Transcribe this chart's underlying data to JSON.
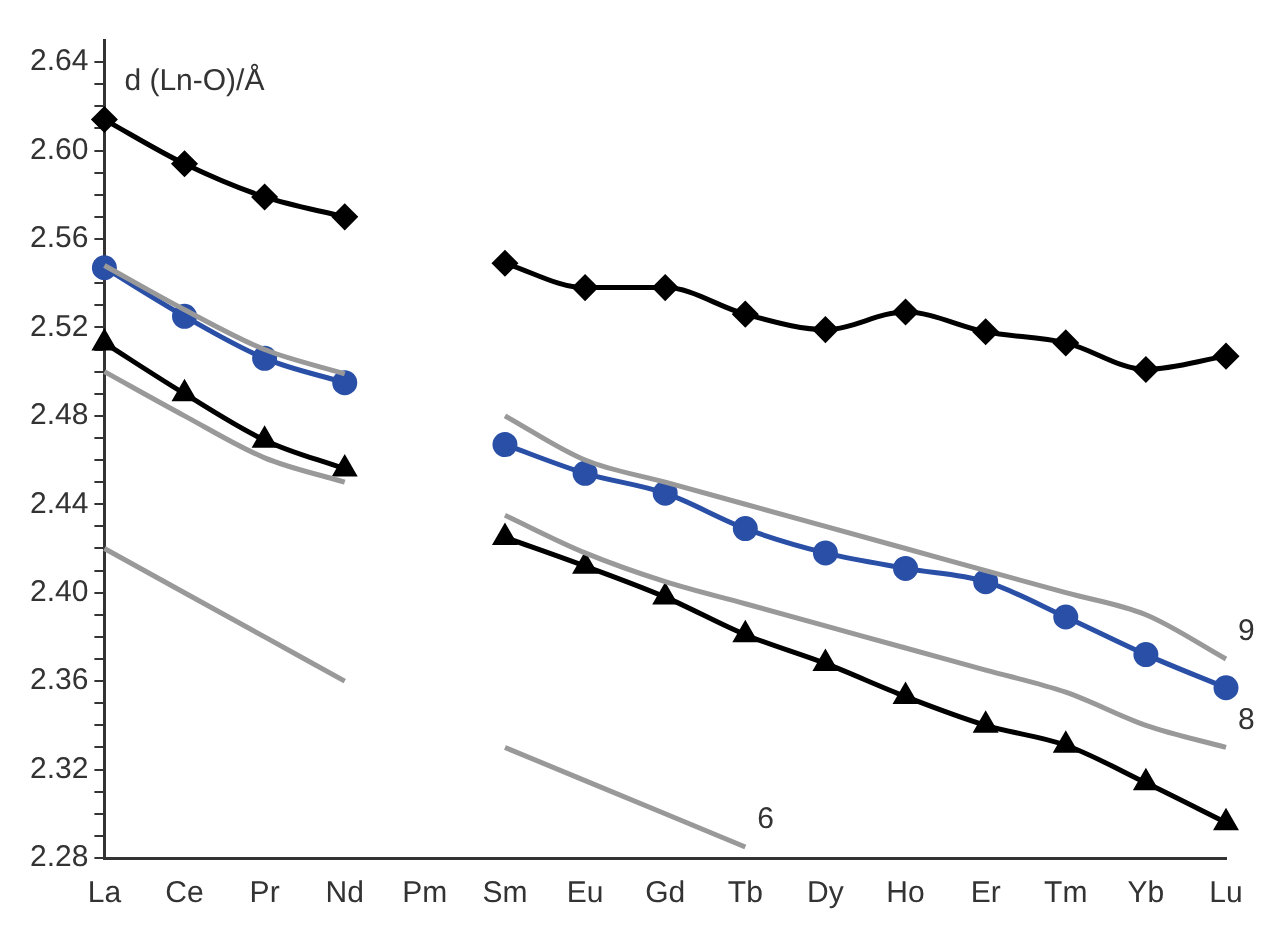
{
  "chart_data": {
    "type": "line",
    "ylabel": "d (Ln-O)/Å",
    "categories": [
      "La",
      "Ce",
      "Pr",
      "Nd",
      "Pm",
      "Sm",
      "Eu",
      "Gd",
      "Tb",
      "Dy",
      "Ho",
      "Er",
      "Tm",
      "Yb",
      "Lu"
    ],
    "series": [
      {
        "color": "#999999",
        "marker": "none",
        "values": [
          2.548,
          2.528,
          2.51,
          2.499,
          null,
          2.48,
          2.46,
          2.45,
          2.44,
          2.43,
          2.42,
          2.41,
          2.4,
          2.39,
          2.37
        ]
      },
      {
        "color": "#999999",
        "marker": "none",
        "values": [
          2.5,
          2.48,
          2.461,
          2.45,
          null,
          2.435,
          2.418,
          2.405,
          2.395,
          2.385,
          2.375,
          2.365,
          2.355,
          2.34,
          2.33
        ]
      },
      {
        "color": "#999999",
        "marker": "none",
        "values": [
          2.42,
          2.4,
          2.38,
          2.36,
          null,
          2.33,
          2.315,
          2.3,
          2.285,
          null,
          null,
          null,
          null,
          null,
          null
        ]
      },
      {
        "color": "#000000",
        "marker": "diamond",
        "values": [
          2.614,
          2.594,
          2.579,
          2.57,
          null,
          2.549,
          2.538,
          2.538,
          2.526,
          2.519,
          2.527,
          2.518,
          2.513,
          2.501,
          2.507
        ]
      },
      {
        "color": "#2a4fa6",
        "marker": "circle",
        "values": [
          2.547,
          2.525,
          2.506,
          2.495,
          null,
          2.467,
          2.454,
          2.445,
          2.429,
          2.418,
          2.411,
          2.405,
          2.389,
          2.372,
          2.357
        ]
      },
      {
        "color": "#000000",
        "marker": "triangle",
        "values": [
          2.513,
          2.49,
          2.469,
          2.456,
          null,
          2.425,
          2.412,
          2.398,
          2.381,
          2.368,
          2.353,
          2.34,
          2.331,
          2.314,
          2.296
        ]
      }
    ],
    "ylim": [
      2.28,
      2.65
    ],
    "yticks": [
      {
        "value": 2.28,
        "label": "2.28"
      },
      {
        "value": 2.29,
        "label": null
      },
      {
        "value": 2.3,
        "label": null
      },
      {
        "value": 2.31,
        "label": null
      },
      {
        "value": 2.32,
        "label": "2.32"
      },
      {
        "value": 2.33,
        "label": null
      },
      {
        "value": 2.34,
        "label": null
      },
      {
        "value": 2.35,
        "label": null
      },
      {
        "value": 2.36,
        "label": "2.36"
      },
      {
        "value": 2.37,
        "label": null
      },
      {
        "value": 2.38,
        "label": null
      },
      {
        "value": 2.39,
        "label": null
      },
      {
        "value": 2.4,
        "label": "2.40"
      },
      {
        "value": 2.41,
        "label": null
      },
      {
        "value": 2.42,
        "label": null
      },
      {
        "value": 2.43,
        "label": null
      },
      {
        "value": 2.44,
        "label": "2.44"
      },
      {
        "value": 2.45,
        "label": null
      },
      {
        "value": 2.46,
        "label": null
      },
      {
        "value": 2.47,
        "label": null
      },
      {
        "value": 2.48,
        "label": "2.48"
      },
      {
        "value": 2.49,
        "label": null
      },
      {
        "value": 2.5,
        "label": null
      },
      {
        "value": 2.51,
        "label": null
      },
      {
        "value": 2.52,
        "label": "2.52"
      },
      {
        "value": 2.53,
        "label": null
      },
      {
        "value": 2.54,
        "label": null
      },
      {
        "value": 2.55,
        "label": null
      },
      {
        "value": 2.56,
        "label": "2.56"
      },
      {
        "value": 2.57,
        "label": null
      },
      {
        "value": 2.58,
        "label": null
      },
      {
        "value": 2.59,
        "label": null
      },
      {
        "value": 2.6,
        "label": "2.60"
      },
      {
        "value": 2.61,
        "label": null
      },
      {
        "value": 2.62,
        "label": null
      },
      {
        "value": 2.63,
        "label": null
      },
      {
        "value": 2.64,
        "label": "2.64"
      }
    ],
    "annotations": [
      {
        "text": "9",
        "x": "Lu",
        "y": 2.37
      },
      {
        "text": "8",
        "x": "Lu",
        "y": 2.33
      },
      {
        "text": "6",
        "x": "Tb",
        "y": 2.285
      }
    ],
    "grid": false,
    "legend": false
  }
}
